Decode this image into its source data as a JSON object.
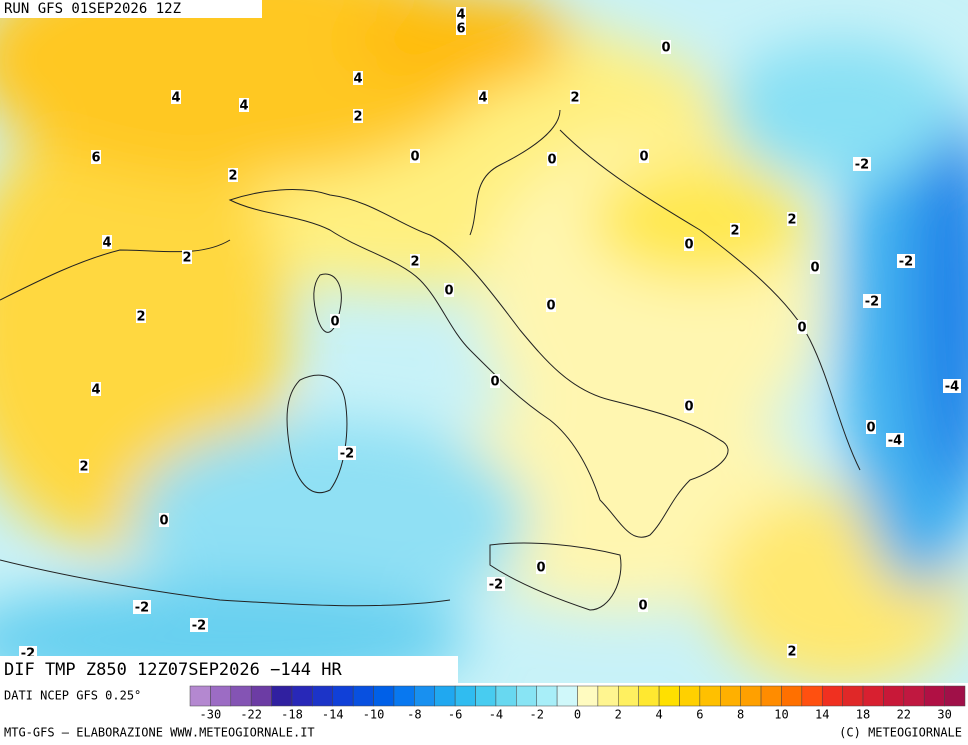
{
  "header": {
    "run": "RUN GFS 01SEP2026 12Z"
  },
  "footer": {
    "product": "DIF TMP Z850 12Z07SEP2026 −144 HR",
    "source": "DATI NCEP GFS 0.25°",
    "credit": "MTG-GFS – ELABORAZIONE WWW.METEOGIORNALE.IT",
    "copyright": "(C) METEOGIORNALE"
  },
  "contour_labels": [
    4,
    6,
    0,
    4,
    4,
    4,
    2,
    4,
    2,
    6,
    0,
    0,
    0,
    -2,
    2,
    2,
    2,
    4,
    2,
    0,
    2,
    -2,
    0,
    0,
    -2,
    0,
    2,
    0,
    0,
    0,
    4,
    -4,
    0,
    0,
    -4,
    -2,
    2,
    0,
    0,
    -2,
    0,
    -2,
    -2,
    -2,
    2
  ],
  "legend": {
    "ticks": [
      -30,
      -22,
      -18,
      -14,
      -10,
      -8,
      -6,
      -4,
      -2,
      0,
      2,
      4,
      6,
      8,
      10,
      14,
      18,
      22,
      30
    ],
    "colors": [
      "#b488d0",
      "#9c6cc4",
      "#8454b4",
      "#6c3ca4",
      "#3020a0",
      "#2828b8",
      "#1c34c8",
      "#1040d8",
      "#0850e0",
      "#0060e8",
      "#0878f0",
      "#1890f0",
      "#20a8f0",
      "#30bcf0",
      "#48ccf0",
      "#68d8f0",
      "#88e4f4",
      "#a8eef8",
      "#d0f8fa",
      "#fffbc0",
      "#fff590",
      "#fff060",
      "#ffe830",
      "#ffe000",
      "#ffd000",
      "#ffc000",
      "#ffb000",
      "#ffa000",
      "#ff8c00",
      "#ff7000",
      "#ff5010",
      "#f03020",
      "#e02828",
      "#d82030",
      "#c81838",
      "#c01840",
      "#b01044",
      "#a01048"
    ]
  }
}
